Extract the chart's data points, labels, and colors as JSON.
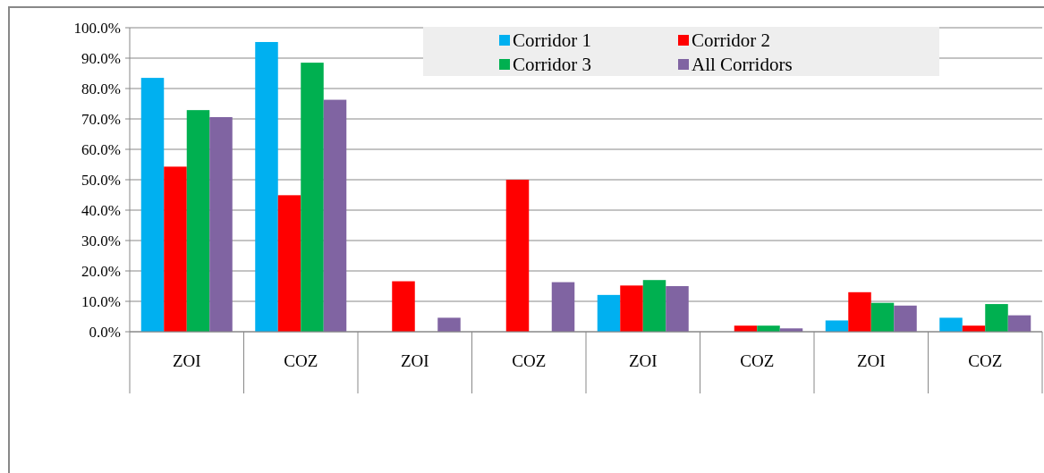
{
  "chart_data": {
    "type": "bar",
    "categories": [
      "ZOI",
      "COZ",
      "ZOI",
      "COZ",
      "ZOI",
      "COZ",
      "ZOI",
      "COZ"
    ],
    "series": [
      {
        "name": "Corridor 1",
        "color": "#00b0f0",
        "values": [
          83.5,
          95.3,
          0,
          0,
          12.1,
          0,
          3.7,
          4.6
        ]
      },
      {
        "name": "Corridor 2",
        "color": "#ff0000",
        "values": [
          54.3,
          44.9,
          16.6,
          50,
          15.2,
          2.0,
          13.0,
          2.0
        ]
      },
      {
        "name": "Corridor 3",
        "color": "#00b050",
        "values": [
          72.9,
          88.5,
          0,
          0,
          17.0,
          2.0,
          9.5,
          9.1
        ]
      },
      {
        "name": "All Corridors",
        "color": "#8064a2",
        "values": [
          70.6,
          76.3,
          4.6,
          16.3,
          15.0,
          1.1,
          8.6,
          5.4
        ]
      }
    ],
    "ylim": [
      0,
      100
    ],
    "yticks": [
      {
        "value": 0,
        "label": "0.0%"
      },
      {
        "value": 10,
        "label": "10.0%"
      },
      {
        "value": 20,
        "label": "20.0%"
      },
      {
        "value": 30,
        "label": "30.0%"
      },
      {
        "value": 40,
        "label": "40.0%"
      },
      {
        "value": 50,
        "label": "50.0%"
      },
      {
        "value": 60,
        "label": "60.0%"
      },
      {
        "value": 70,
        "label": "70.0%"
      },
      {
        "value": 80,
        "label": "80.0%"
      },
      {
        "value": 90,
        "label": "90.0%"
      },
      {
        "value": 100,
        "label": "100.0%"
      }
    ],
    "grid": "y",
    "legend": "top"
  }
}
